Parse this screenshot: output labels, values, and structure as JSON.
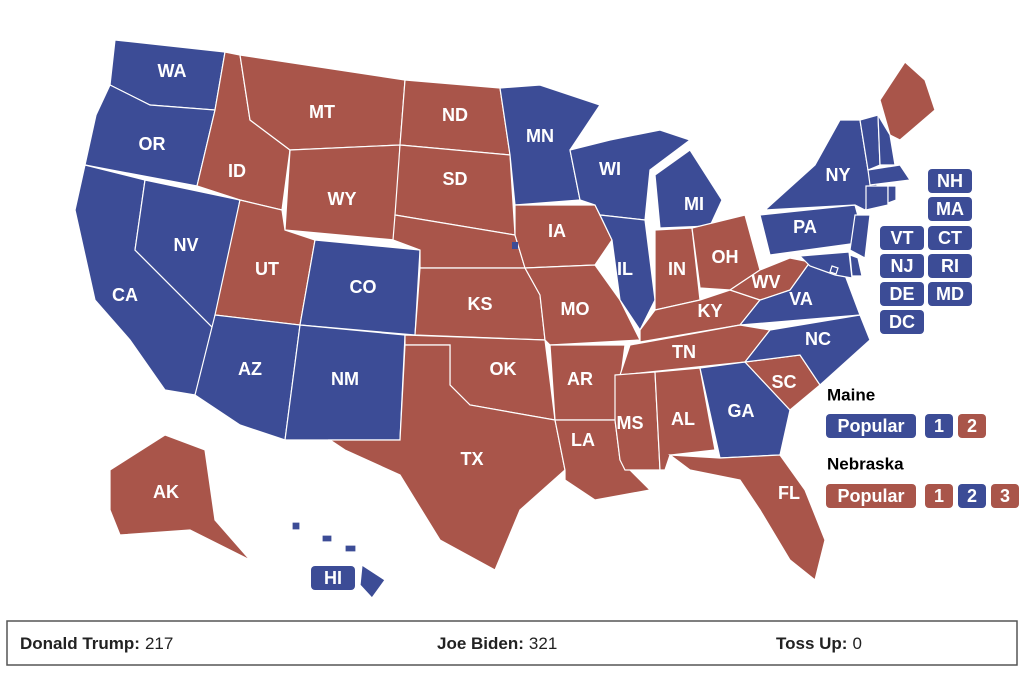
{
  "map": {
    "colors": {
      "R": "#a9554a",
      "D": "#3c4c96"
    },
    "states": [
      {
        "abbr": "WA",
        "party": "D"
      },
      {
        "abbr": "OR",
        "party": "D"
      },
      {
        "abbr": "CA",
        "party": "D"
      },
      {
        "abbr": "NV",
        "party": "D"
      },
      {
        "abbr": "ID",
        "party": "R"
      },
      {
        "abbr": "MT",
        "party": "R"
      },
      {
        "abbr": "WY",
        "party": "R"
      },
      {
        "abbr": "UT",
        "party": "R"
      },
      {
        "abbr": "CO",
        "party": "D"
      },
      {
        "abbr": "AZ",
        "party": "D"
      },
      {
        "abbr": "NM",
        "party": "D"
      },
      {
        "abbr": "ND",
        "party": "R"
      },
      {
        "abbr": "SD",
        "party": "R"
      },
      {
        "party": "R"
      },
      {
        "abbr": "KS",
        "party": "R"
      },
      {
        "abbr": "OK",
        "party": "R"
      },
      {
        "abbr": "TX",
        "party": "R"
      },
      {
        "abbr": "MN",
        "party": "D"
      },
      {
        "abbr": "IA",
        "party": "R"
      },
      {
        "abbr": "MO",
        "party": "R"
      },
      {
        "abbr": "AR",
        "party": "R"
      },
      {
        "abbr": "LA",
        "party": "R"
      },
      {
        "abbr": "WI",
        "party": "D"
      },
      {
        "abbr": "IL",
        "party": "D"
      },
      {
        "abbr": "MI",
        "party": "D"
      },
      {
        "abbr": "IN",
        "party": "R"
      },
      {
        "abbr": "OH",
        "party": "R"
      },
      {
        "abbr": "KY",
        "party": "R"
      },
      {
        "abbr": "TN",
        "party": "R"
      },
      {
        "abbr": "MS",
        "party": "R"
      },
      {
        "abbr": "AL",
        "party": "R"
      },
      {
        "abbr": "GA",
        "party": "D"
      },
      {
        "abbr": "FL",
        "party": "R"
      },
      {
        "abbr": "SC",
        "party": "R"
      },
      {
        "abbr": "NC",
        "party": "D"
      },
      {
        "abbr": "VA",
        "party": "D"
      },
      {
        "abbr": "WV",
        "party": "R"
      },
      {
        "abbr": "PA",
        "party": "D"
      },
      {
        "abbr": "NY",
        "party": "D"
      },
      {
        "party": "R"
      },
      {
        "abbr": "VT",
        "party": "D"
      },
      {
        "abbr": "NH",
        "party": "D"
      },
      {
        "abbr": "MA",
        "party": "D"
      },
      {
        "abbr": "CT",
        "party": "D"
      },
      {
        "abbr": "RI",
        "party": "D"
      },
      {
        "abbr": "NJ",
        "party": "D"
      },
      {
        "abbr": "DE",
        "party": "D"
      },
      {
        "abbr": "MD",
        "party": "D"
      },
      {
        "abbr": "DC",
        "party": "D"
      },
      {
        "abbr": "AK",
        "party": "R"
      },
      {
        "abbr": "HI",
        "party": "D"
      }
    ]
  },
  "legend": [
    {
      "title": "Maine",
      "items": [
        {
          "label": "Popular",
          "party": "D"
        },
        {
          "label": "1",
          "party": "D"
        },
        {
          "label": "2",
          "party": "R"
        }
      ]
    },
    {
      "title": "Nebraska",
      "items": [
        {
          "label": "Popular",
          "party": "R"
        },
        {
          "label": "1",
          "party": "R"
        },
        {
          "label": "2",
          "party": "D"
        },
        {
          "label": "3",
          "party": "R"
        }
      ]
    }
  ],
  "footer": [
    {
      "name": "Donald Trump:",
      "count": 217
    },
    {
      "name": "Joe Biden:",
      "count": 321
    },
    {
      "name": "Toss Up:",
      "count": 0
    }
  ]
}
